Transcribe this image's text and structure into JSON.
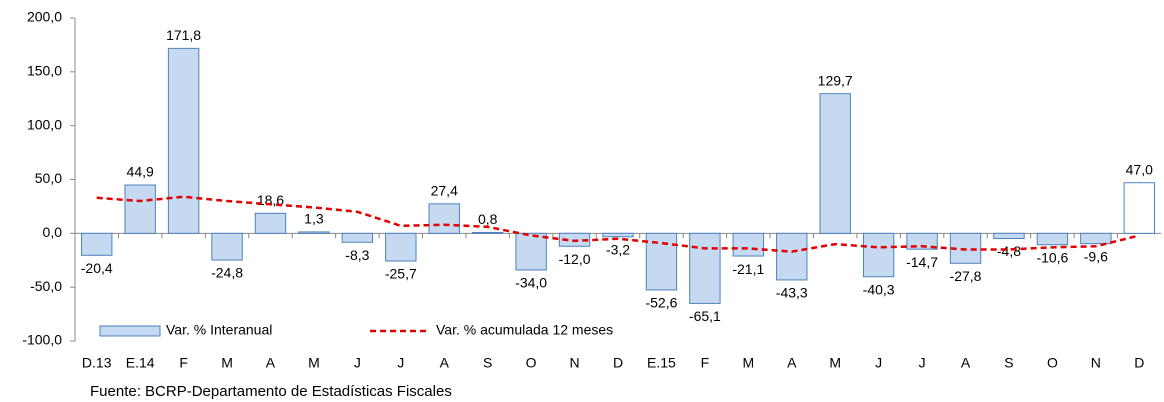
{
  "chart_data": {
    "type": "bar",
    "categories": [
      "D.13",
      "E.14",
      "F",
      "M",
      "A",
      "M",
      "J",
      "J",
      "A",
      "S",
      "O",
      "N",
      "D",
      "E.15",
      "F",
      "M",
      "A",
      "M",
      "J",
      "J",
      "A",
      "S",
      "O",
      "N",
      "D"
    ],
    "series": [
      {
        "name": "Var. % Interanual",
        "type": "bar",
        "color": "#c5d9f1",
        "stroke": "#4f81bd",
        "bar_colors": [
          "#c5d9f1",
          "#c5d9f1",
          "#c5d9f1",
          "#c5d9f1",
          "#c5d9f1",
          "#c5d9f1",
          "#c5d9f1",
          "#c5d9f1",
          "#c5d9f1",
          "#c5d9f1",
          "#c5d9f1",
          "#c5d9f1",
          "#c5d9f1",
          "#c5d9f1",
          "#c5d9f1",
          "#c5d9f1",
          "#c5d9f1",
          "#c5d9f1",
          "#c5d9f1",
          "#c5d9f1",
          "#c5d9f1",
          "#c5d9f1",
          "#c5d9f1",
          "#c5d9f1",
          "#ffffff"
        ],
        "values": [
          -20.4,
          44.9,
          171.8,
          -24.8,
          18.6,
          1.3,
          -8.3,
          -25.7,
          27.4,
          0.8,
          -34.0,
          -12.0,
          -3.2,
          -52.6,
          -65.1,
          -21.1,
          -43.3,
          129.7,
          -40.3,
          -14.7,
          -27.8,
          -4.8,
          -10.6,
          -9.6,
          47.0
        ],
        "value_labels": [
          "-20,4",
          "44,9",
          "171,8",
          "-24,8",
          "18,6",
          "1,3",
          "-8,3",
          "-25,7",
          "27,4",
          "0,8",
          "-34,0",
          "-12,0",
          "-3,2",
          "-52,6",
          "-65,1",
          "-21,1",
          "-43,3",
          "129,7",
          "-40,3",
          "-14,7",
          "-27,8",
          "-4,8",
          "-10,6",
          "-9,6",
          "47,0"
        ]
      },
      {
        "name": "Var. % acumulada 12 meses",
        "type": "line",
        "color": "#e00000",
        "values": [
          33,
          30,
          34,
          30,
          27,
          24,
          20,
          7,
          8,
          6,
          -2,
          -7,
          -5,
          -9,
          -14,
          -14,
          -17,
          -10,
          -13,
          -12,
          -15,
          -15,
          -13,
          -12,
          -2
        ]
      }
    ],
    "ylim": [
      -100,
      200
    ],
    "yticks": [
      {
        "value": -100,
        "label": "-100,0"
      },
      {
        "value": -50,
        "label": "-50,0"
      },
      {
        "value": 0,
        "label": "0,0"
      },
      {
        "value": 50,
        "label": "50,0"
      },
      {
        "value": 100,
        "label": "100,0"
      },
      {
        "value": 150,
        "label": "150,0"
      },
      {
        "value": 200,
        "label": "200,0"
      }
    ],
    "grid": false,
    "legend": "bottom-left",
    "source": "Fuente: BCRP-Departamento de Estadísticas Fiscales"
  }
}
